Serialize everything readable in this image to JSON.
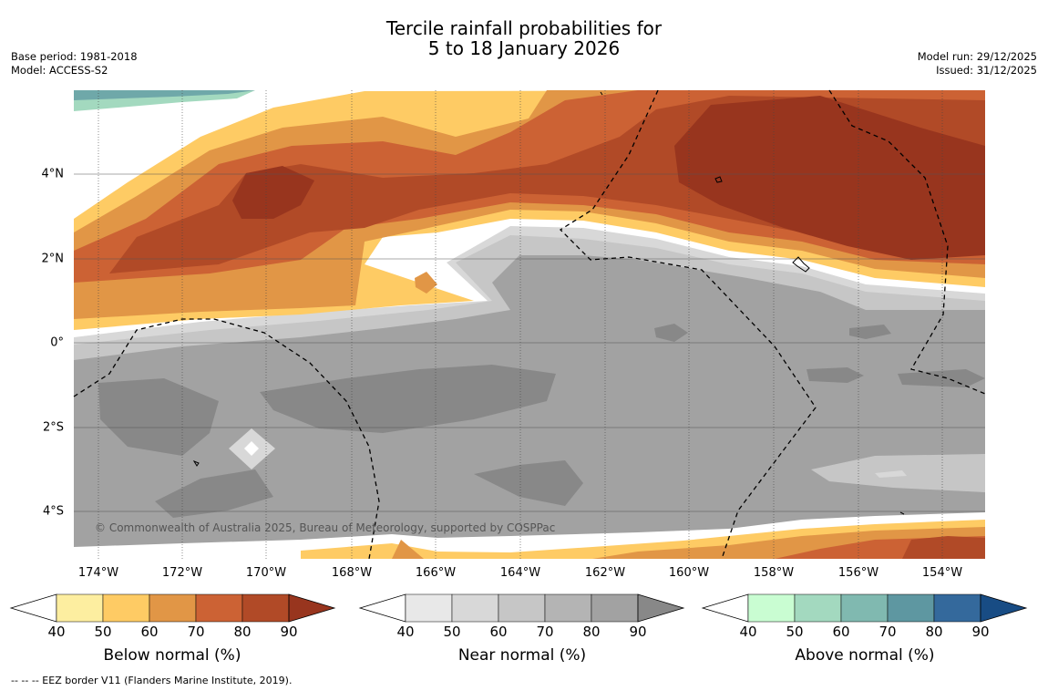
{
  "title": {
    "line1": "Tercile rainfall probabilities for",
    "line2": "5 to 18 January 2026"
  },
  "meta_left": {
    "base_period": "Base period: 1981-2018",
    "model": "Model: ACCESS-S2"
  },
  "meta_right": {
    "model_run": "Model run: 29/12/2025",
    "issued": "Issued: 31/12/2025"
  },
  "map": {
    "lat_labels": [
      "4°N",
      "2°N",
      "0°",
      "2°S",
      "4°S"
    ],
    "lon_labels": [
      "174°W",
      "172°W",
      "170°W",
      "168°W",
      "166°W",
      "164°W",
      "162°W",
      "160°W",
      "158°W",
      "156°W",
      "154°W"
    ],
    "copyright": "© Commonwealth of Australia 2025, Bureau of Meteorology, supported by COSPPac"
  },
  "colorbars": [
    {
      "title": "Below normal (%)",
      "ticks": [
        "40",
        "50",
        "60",
        "70",
        "80",
        "90"
      ],
      "colors": [
        "#fdeea0",
        "#fecb64",
        "#e19646",
        "#cc6234",
        "#b14a27",
        "#98351e"
      ]
    },
    {
      "title": "Near normal (%)",
      "ticks": [
        "40",
        "50",
        "60",
        "70",
        "80",
        "90"
      ],
      "colors": [
        "#e8e8e8",
        "#d8d8d8",
        "#c6c6c6",
        "#b4b4b4",
        "#a2a2a2",
        "#888888"
      ]
    },
    {
      "title": "Above normal (%)",
      "ticks": [
        "40",
        "50",
        "60",
        "70",
        "80",
        "90"
      ],
      "colors": [
        "#c9fdd2",
        "#a3d9bf",
        "#80b9b0",
        "#5e97a1",
        "#34699c",
        "#184c84"
      ]
    }
  ],
  "legend_note": "--  --  -- EEZ border V11 (Flanders Marine Institute, 2019)."
}
